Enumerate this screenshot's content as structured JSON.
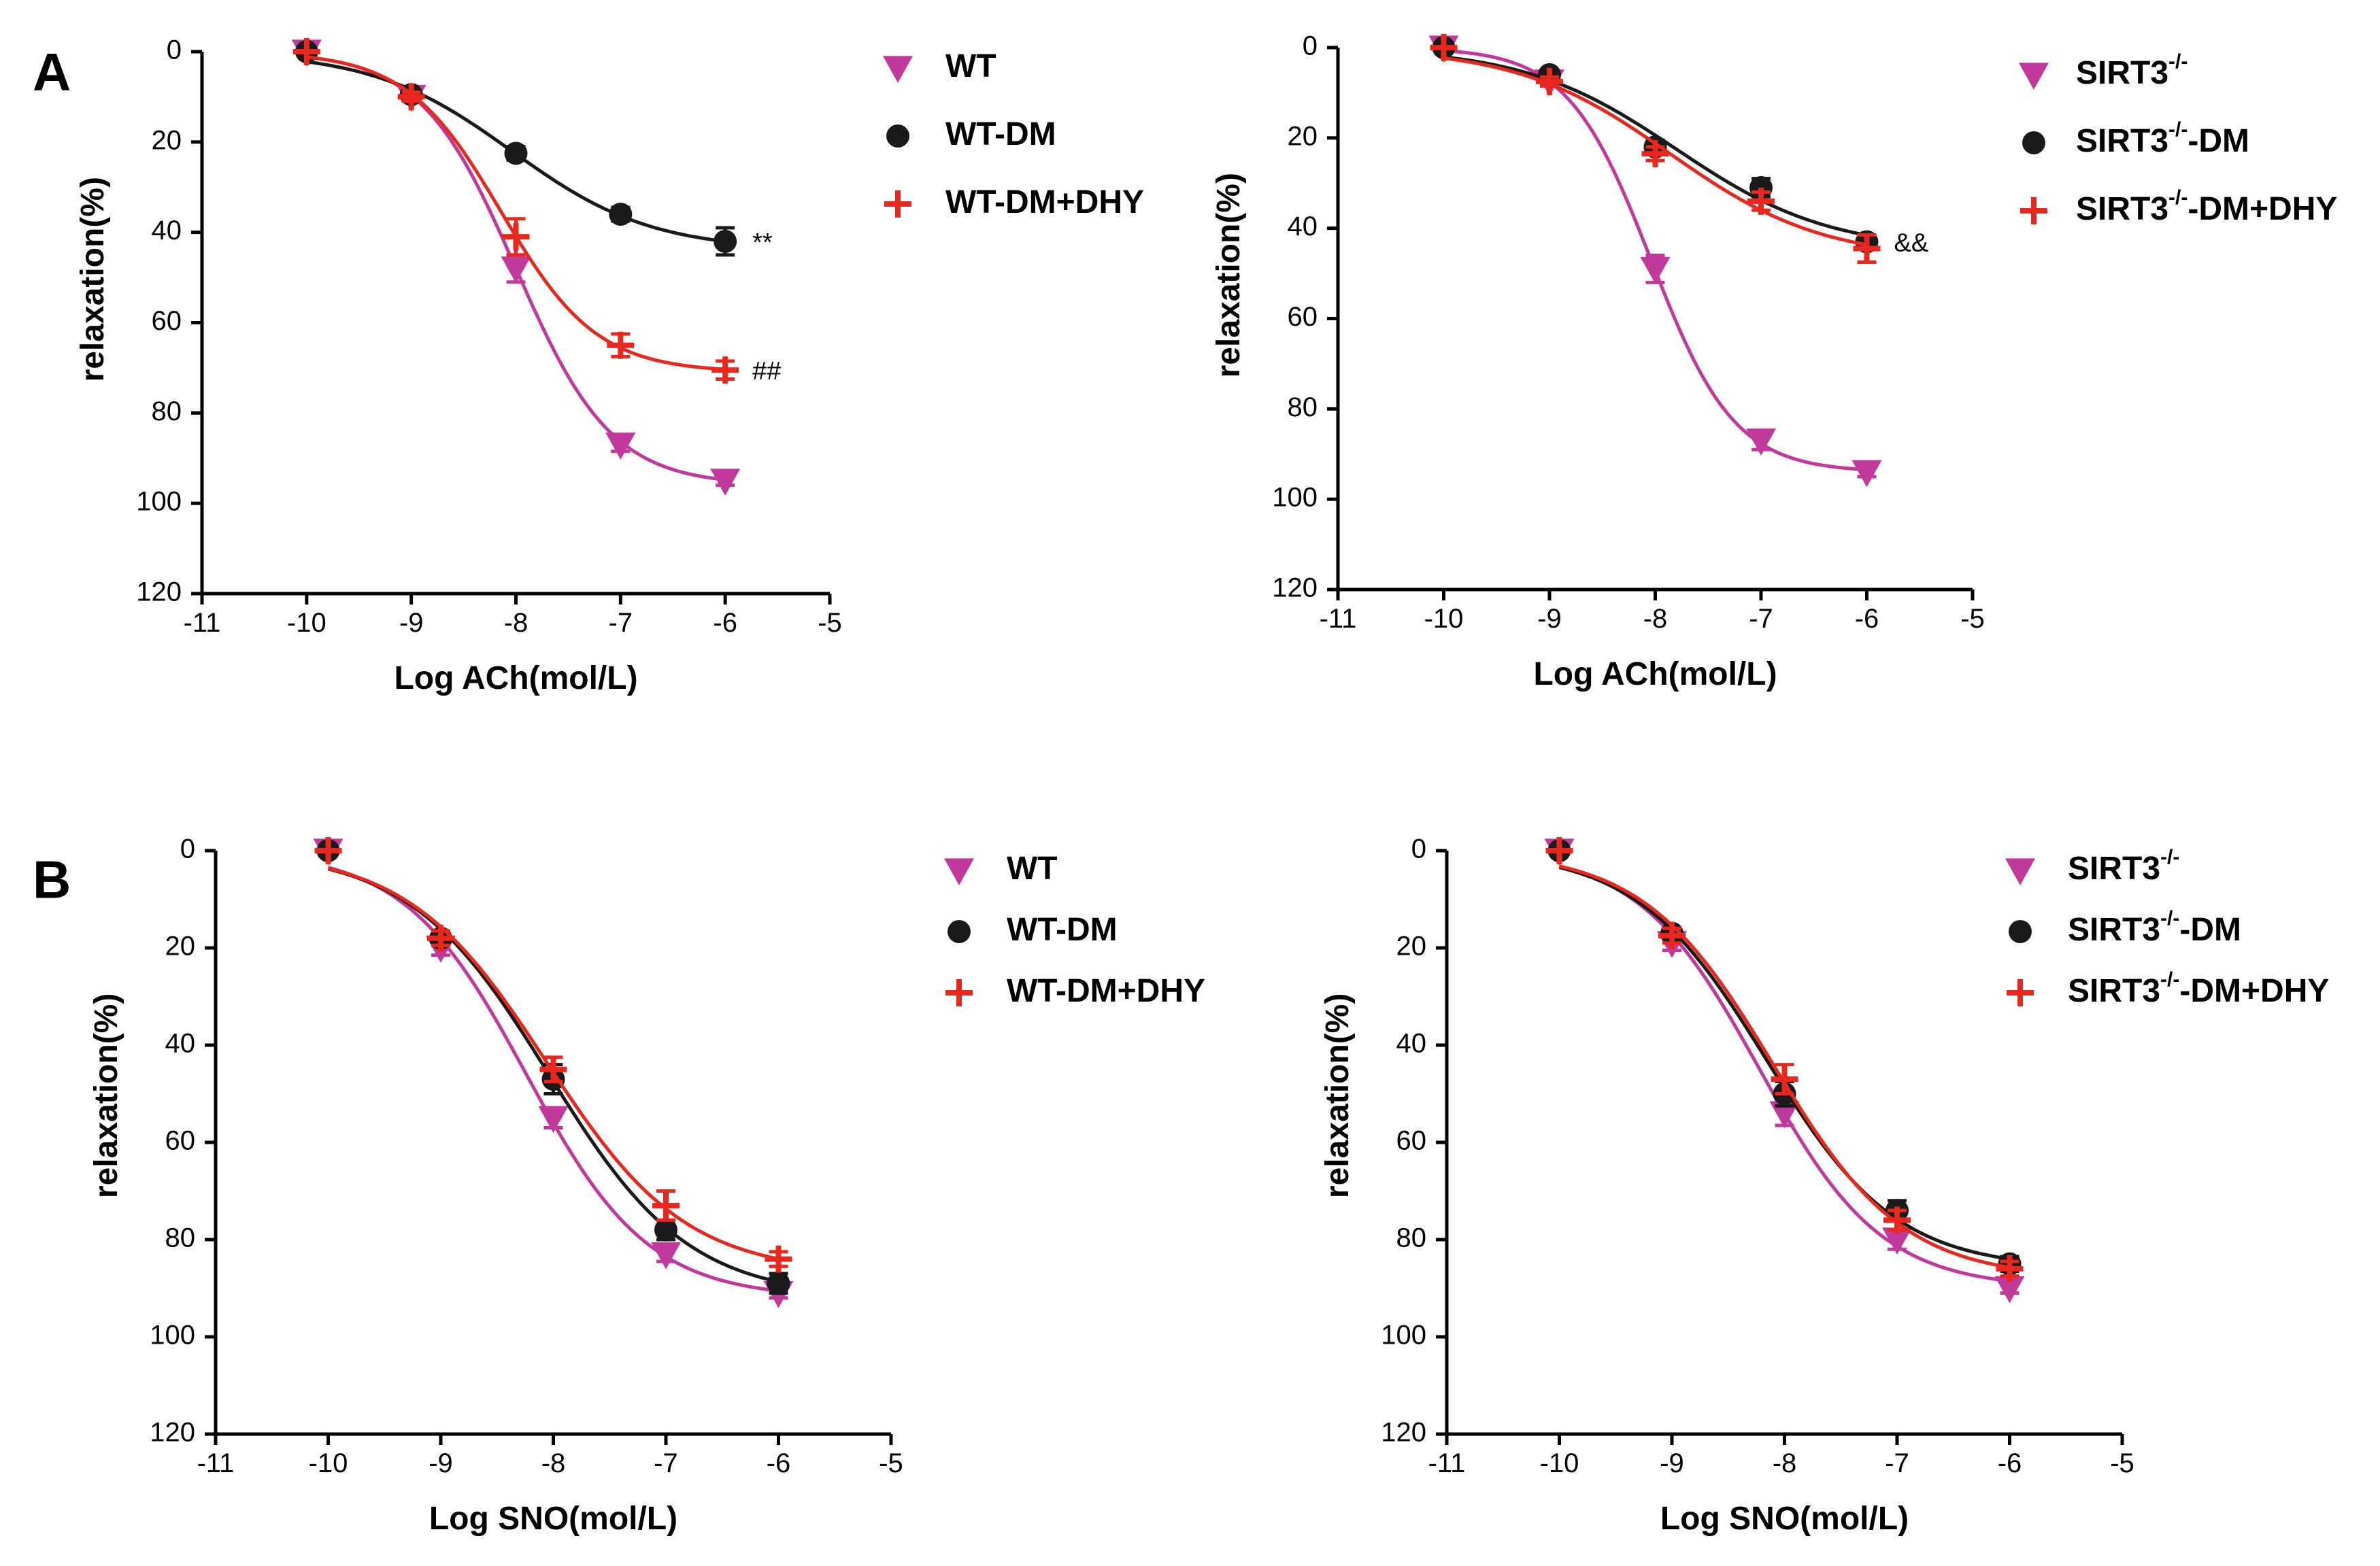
{
  "colors": {
    "WT": "#c0399b",
    "DM": "#1a1a1a",
    "DHY": "#e8281e",
    "axis": "#000000"
  },
  "panel_labels": [
    "A",
    "B"
  ],
  "chart_data": [
    {
      "type": "line",
      "panel": "A",
      "title": "",
      "xlabel": "Log ACh(mol/L)",
      "ylabel": "relaxation(%)",
      "xlim": [
        -11,
        -5
      ],
      "ylim": [
        0,
        120
      ],
      "y_inverted": true,
      "xticks": [
        -11,
        -10,
        -9,
        -8,
        -7,
        -6,
        -5
      ],
      "yticks": [
        0,
        20,
        40,
        60,
        80,
        100,
        120
      ],
      "xtick_labels": [
        "-11",
        "-10",
        "-9",
        "-8",
        "-7",
        "-6",
        "-5"
      ],
      "ytick_labels": [
        "0",
        "20",
        "40",
        "60",
        "80",
        "100",
        "120"
      ],
      "legend_position": "right",
      "series": [
        {
          "name": "WT",
          "name_base": "WT",
          "name_sup": "",
          "name_suffix": "",
          "marker": "triangle-down",
          "color_key": "WT",
          "x": [
            -10,
            -9,
            -8,
            -7,
            -6
          ],
          "values": [
            0,
            10,
            48,
            87,
            95
          ],
          "err": [
            0,
            1,
            3,
            1.5,
            1
          ],
          "annotation": ""
        },
        {
          "name": "WT-DM",
          "name_base": "WT",
          "name_sup": "",
          "name_suffix": "-DM",
          "marker": "circle",
          "color_key": "DM",
          "x": [
            -10,
            -9,
            -8,
            -7,
            -6
          ],
          "values": [
            0,
            9.5,
            22.5,
            36,
            42
          ],
          "err": [
            0,
            1,
            1.5,
            1.5,
            3
          ],
          "annotation": "**"
        },
        {
          "name": "WT-DM+DHY",
          "name_base": "WT",
          "name_sup": "",
          "name_suffix": "-DM+DHY",
          "marker": "cross",
          "color_key": "DHY",
          "x": [
            -10,
            -9,
            -8,
            -7,
            -6
          ],
          "values": [
            0,
            10,
            41,
            65,
            70.5
          ],
          "err": [
            0,
            1,
            4,
            2.5,
            2
          ],
          "annotation": "##"
        }
      ]
    },
    {
      "type": "line",
      "panel": "",
      "title": "",
      "xlabel": "Log ACh(mol/L)",
      "ylabel": "relaxation(%)",
      "xlim": [
        -11,
        -5
      ],
      "ylim": [
        0,
        120
      ],
      "y_inverted": true,
      "xticks": [
        -11,
        -10,
        -9,
        -8,
        -7,
        -6,
        -5
      ],
      "yticks": [
        0,
        20,
        40,
        60,
        80,
        100,
        120
      ],
      "xtick_labels": [
        "-11",
        "-10",
        "-9",
        "-8",
        "-7",
        "-6",
        "-5"
      ],
      "ytick_labels": [
        "0",
        "20",
        "40",
        "60",
        "80",
        "100",
        "120"
      ],
      "legend_position": "right",
      "series": [
        {
          "name": "SIRT3-/-",
          "name_base": "SIRT3",
          "name_sup": "-/-",
          "name_suffix": "",
          "marker": "triangle-down",
          "color_key": "WT",
          "x": [
            -10,
            -9,
            -8,
            -7,
            -6
          ],
          "values": [
            0,
            7.5,
            49,
            87,
            94
          ],
          "err": [
            0,
            1,
            3,
            2,
            1
          ],
          "annotation": ""
        },
        {
          "name": "SIRT3-/--DM",
          "name_base": "SIRT3",
          "name_sup": "-/-",
          "name_suffix": "-DM",
          "marker": "circle",
          "color_key": "DM",
          "x": [
            -10,
            -9,
            -8,
            -7,
            -6
          ],
          "values": [
            0,
            6,
            22,
            31,
            43
          ],
          "err": [
            0,
            1,
            1.5,
            2,
            1.5
          ],
          "annotation": "&&"
        },
        {
          "name": "SIRT3-/--DM+DHY",
          "name_base": "SIRT3",
          "name_sup": "-/-",
          "name_suffix": "-DM+DHY",
          "marker": "cross",
          "color_key": "DHY",
          "x": [
            -10,
            -9,
            -8,
            -7,
            -6
          ],
          "values": [
            0,
            7.5,
            23.5,
            34,
            44.5
          ],
          "err": [
            0,
            1,
            1.5,
            2,
            3
          ],
          "annotation": ""
        }
      ]
    },
    {
      "type": "line",
      "panel": "B",
      "title": "",
      "xlabel": "Log SNO(mol/L)",
      "ylabel": "relaxation(%)",
      "xlim": [
        -11,
        -5
      ],
      "ylim": [
        0,
        120
      ],
      "y_inverted": true,
      "xticks": [
        -11,
        -10,
        -9,
        -8,
        -7,
        -6,
        -5
      ],
      "yticks": [
        0,
        20,
        40,
        60,
        80,
        100,
        120
      ],
      "xtick_labels": [
        "-11",
        "-10",
        "-9",
        "-8",
        "-7",
        "-6",
        "-5"
      ],
      "ytick_labels": [
        "0",
        "20",
        "40",
        "60",
        "80",
        "100",
        "120"
      ],
      "legend_position": "right",
      "series": [
        {
          "name": "WT",
          "name_base": "WT",
          "name_sup": "",
          "name_suffix": "",
          "marker": "triangle-down",
          "color_key": "WT",
          "x": [
            -10,
            -9,
            -8,
            -7,
            -6
          ],
          "values": [
            0,
            20,
            55,
            83,
            91
          ],
          "err": [
            0,
            1.5,
            2,
            1.5,
            1
          ],
          "annotation": ""
        },
        {
          "name": "WT-DM",
          "name_base": "WT",
          "name_sup": "",
          "name_suffix": "-DM",
          "marker": "circle",
          "color_key": "DM",
          "x": [
            -10,
            -9,
            -8,
            -7,
            -6
          ],
          "values": [
            0,
            18,
            47,
            78,
            89
          ],
          "err": [
            0,
            1.5,
            3,
            2,
            2
          ],
          "annotation": ""
        },
        {
          "name": "WT-DM+DHY",
          "name_base": "WT",
          "name_sup": "",
          "name_suffix": "-DM+DHY",
          "marker": "cross",
          "color_key": "DHY",
          "x": [
            -10,
            -9,
            -8,
            -7,
            -6
          ],
          "values": [
            0,
            18,
            45,
            73,
            84
          ],
          "err": [
            0,
            1.5,
            2.5,
            3,
            1.5
          ],
          "annotation": ""
        }
      ]
    },
    {
      "type": "line",
      "panel": "",
      "title": "",
      "xlabel": "Log SNO(mol/L)",
      "ylabel": "relaxation(%)",
      "xlim": [
        -11,
        -5
      ],
      "ylim": [
        0,
        120
      ],
      "y_inverted": true,
      "xticks": [
        -11,
        -10,
        -9,
        -8,
        -7,
        -6,
        -5
      ],
      "yticks": [
        0,
        20,
        40,
        60,
        80,
        100,
        120
      ],
      "xtick_labels": [
        "-11",
        "-10",
        "-9",
        "-8",
        "-7",
        "-6",
        "-5"
      ],
      "ytick_labels": [
        "0",
        "20",
        "40",
        "60",
        "80",
        "100",
        "120"
      ],
      "legend_position": "right",
      "series": [
        {
          "name": "SIRT3-/-",
          "name_base": "SIRT3",
          "name_sup": "-/-",
          "name_suffix": "",
          "marker": "triangle-down",
          "color_key": "WT",
          "x": [
            -10,
            -9,
            -8,
            -7,
            -6
          ],
          "values": [
            0,
            19,
            54,
            80,
            90
          ],
          "err": [
            0,
            1.5,
            2.5,
            2,
            1
          ],
          "annotation": ""
        },
        {
          "name": "SIRT3-/--DM",
          "name_base": "SIRT3",
          "name_sup": "-/-",
          "name_suffix": "-DM",
          "marker": "circle",
          "color_key": "DM",
          "x": [
            -10,
            -9,
            -8,
            -7,
            -6
          ],
          "values": [
            0,
            17,
            50,
            74,
            85
          ],
          "err": [
            0,
            1,
            2.5,
            2,
            1.5
          ],
          "annotation": ""
        },
        {
          "name": "SIRT3-/--DM+DHY",
          "name_base": "SIRT3",
          "name_sup": "-/-",
          "name_suffix": "-DM+DHY",
          "marker": "cross",
          "color_key": "DHY",
          "x": [
            -10,
            -9,
            -8,
            -7,
            -6
          ],
          "values": [
            0,
            17.5,
            47,
            76,
            86
          ],
          "err": [
            0,
            1.5,
            3,
            2,
            1.5
          ],
          "annotation": ""
        }
      ]
    }
  ]
}
